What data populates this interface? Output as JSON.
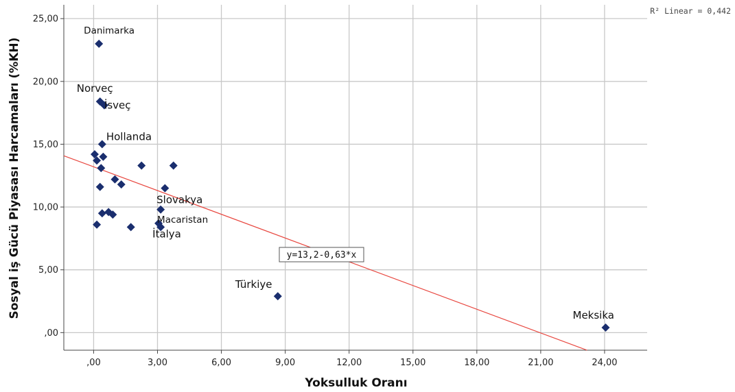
{
  "chart_data": {
    "type": "scatter",
    "xlabel": "Yoksulluk Oranı",
    "ylabel": "Sosyal iş Gücü Piyasası Harcamaları (%KH)",
    "xlim": [
      -1.4,
      26.0
    ],
    "ylim": [
      -1.4,
      26.1
    ],
    "x_ticks": [
      0,
      3,
      6,
      9,
      12,
      15,
      18,
      21,
      24
    ],
    "x_tick_labels": [
      ",00",
      "3,00",
      "6,00",
      "9,00",
      "12,00",
      "15,00",
      "18,00",
      "21,00",
      "24,00"
    ],
    "y_ticks": [
      0,
      5,
      10,
      15,
      20,
      25
    ],
    "y_tick_labels": [
      ",00",
      "5,00",
      "10,00",
      "15,00",
      "20,00",
      "25,00"
    ],
    "grid": true,
    "marker": "diamond",
    "marker_color": "#1a2e6e",
    "points": [
      {
        "x": 0.25,
        "y": 23.0,
        "label": "Danimarka"
      },
      {
        "x": 0.3,
        "y": 18.4,
        "label": "Norveç"
      },
      {
        "x": 0.5,
        "y": 18.1,
        "label": "İsveç"
      },
      {
        "x": 0.4,
        "y": 15.0,
        "label": "Hollanda"
      },
      {
        "x": 0.05,
        "y": 14.2,
        "label": ""
      },
      {
        "x": 0.15,
        "y": 13.7,
        "label": ""
      },
      {
        "x": 0.45,
        "y": 14.0,
        "label": ""
      },
      {
        "x": 0.35,
        "y": 13.1,
        "label": ""
      },
      {
        "x": 2.25,
        "y": 13.3,
        "label": ""
      },
      {
        "x": 3.75,
        "y": 13.3,
        "label": ""
      },
      {
        "x": 1.0,
        "y": 12.2,
        "label": ""
      },
      {
        "x": 1.3,
        "y": 11.8,
        "label": ""
      },
      {
        "x": 0.3,
        "y": 11.6,
        "label": ""
      },
      {
        "x": 3.35,
        "y": 11.5,
        "label": ""
      },
      {
        "x": 3.15,
        "y": 9.8,
        "label": "Slovakya"
      },
      {
        "x": 0.4,
        "y": 9.5,
        "label": ""
      },
      {
        "x": 0.7,
        "y": 9.6,
        "label": ""
      },
      {
        "x": 0.9,
        "y": 9.4,
        "label": ""
      },
      {
        "x": 0.15,
        "y": 8.6,
        "label": ""
      },
      {
        "x": 1.75,
        "y": 8.4,
        "label": ""
      },
      {
        "x": 3.05,
        "y": 8.7,
        "label": "Macaristan"
      },
      {
        "x": 3.15,
        "y": 8.4,
        "label": "İtalya"
      },
      {
        "x": 8.65,
        "y": 2.9,
        "label": "Türkiye"
      },
      {
        "x": 24.05,
        "y": 0.4,
        "label": "Meksika"
      }
    ],
    "fit_line": {
      "intercept": 13.2,
      "slope": -0.63,
      "color": "#e8473f"
    },
    "equation_label": "y=13,2-0,63*x",
    "r2_label": "R² Linear = 0,442"
  }
}
